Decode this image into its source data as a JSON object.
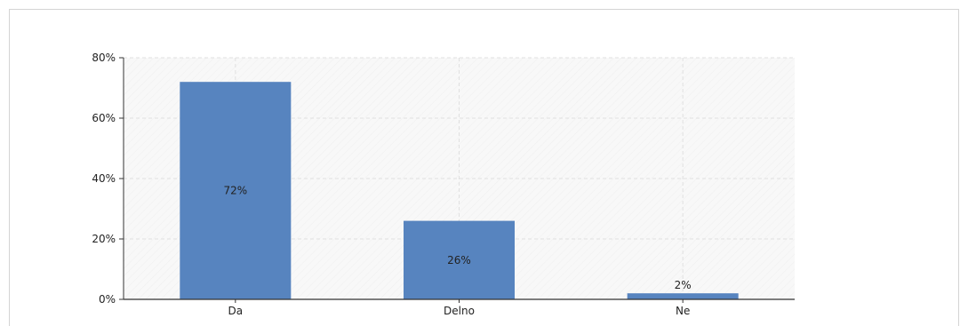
{
  "chart_data": {
    "type": "bar",
    "categories": [
      "Da",
      "Delno",
      "Ne"
    ],
    "values": [
      72,
      26,
      2
    ],
    "value_labels": [
      "72%",
      "26%",
      "2%"
    ],
    "ylim": [
      0,
      80
    ],
    "yticks": [
      0,
      20,
      40,
      60,
      80
    ],
    "ytick_labels": [
      "0%",
      "20%",
      "40%",
      "60%",
      "80%"
    ],
    "title": "",
    "xlabel": "",
    "ylabel": "",
    "grid": true,
    "colors": {
      "bar": "#5784bf",
      "plot_background": "#f8f8f8",
      "grid": "#e0e0e0",
      "axis": "#333333"
    }
  }
}
